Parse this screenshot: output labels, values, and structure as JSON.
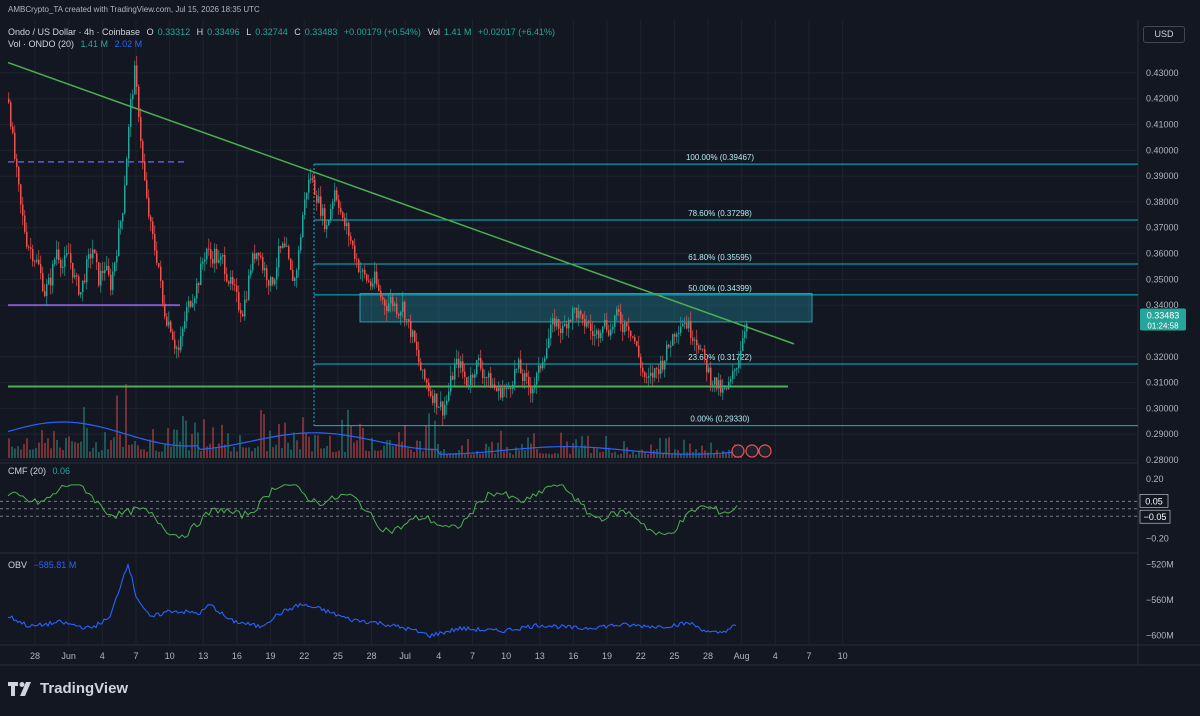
{
  "header": {
    "credit": "AMBCrypto_TA created with TradingView.com, Jul 15, 2026 18:35 UTC",
    "symbol": "Ondo / US Dollar · 4h · Coinbase",
    "o_label": "O",
    "o_value": "0.33312",
    "h_label": "H",
    "h_value": "0.33496",
    "l_label": "L",
    "l_value": "0.32744",
    "c_label": "C",
    "c_value": "0.33483",
    "change": "+0.00179 (+0.54%)",
    "vol_label": "Vol",
    "vol_value": "1.41 M",
    "vol_change": "+0.02017 (+6.41%)",
    "vol_ma_label": "Vol · ONDO (20)",
    "vol_ma_v1": "1.41 M",
    "vol_ma_v2": "2.02 M",
    "cmf_label": "CMF (20)",
    "cmf_value": "0.06",
    "obv_label": "OBV",
    "obv_value": "−585.81 M"
  },
  "currency_button": "USD",
  "price_badge": {
    "price": "0.33483",
    "countdown": "01:24:58"
  },
  "cmf_badges": [
    "0.05",
    "−0.05"
  ],
  "colors": {
    "background": "#131722",
    "up": "#26a69a",
    "down": "#ef5350",
    "trendline": "#4caf50",
    "fib": "#00bcd4",
    "zone": "#26a0b0",
    "cmf": "#4caf50",
    "obv": "#2962ff",
    "vol_ma": "#2962ff",
    "dashed": "#5b5bd6"
  },
  "footer": {
    "brand": "TradingView"
  },
  "chart_data": [
    {
      "type": "candlestick",
      "title": "Ondo / US Dollar · 4h · Coinbase",
      "ylim": [
        0.28,
        0.435
      ],
      "y_ticks": [
        "0.43000",
        "0.42000",
        "0.41000",
        "0.40000",
        "0.39000",
        "0.38000",
        "0.37000",
        "0.36000",
        "0.35000",
        "0.34000",
        "0.32000",
        "0.31000",
        "0.30000",
        "0.29000",
        "0.28000"
      ],
      "x_ticks": [
        "28",
        "Jun",
        "4",
        "7",
        "10",
        "13",
        "16",
        "19",
        "22",
        "25",
        "28",
        "Jul",
        "4",
        "7",
        "10",
        "13",
        "16",
        "19",
        "22",
        "25",
        "28",
        "Aug",
        "4",
        "7",
        "10"
      ],
      "close_path": [
        [
          0,
          0.42
        ],
        [
          5,
          0.4
        ],
        [
          12,
          0.378
        ],
        [
          18,
          0.365
        ],
        [
          24,
          0.36
        ],
        [
          30,
          0.355
        ],
        [
          36,
          0.345
        ],
        [
          42,
          0.35
        ],
        [
          48,
          0.362
        ],
        [
          54,
          0.355
        ],
        [
          60,
          0.36
        ],
        [
          66,
          0.35
        ],
        [
          72,
          0.345
        ],
        [
          78,
          0.355
        ],
        [
          84,
          0.362
        ],
        [
          90,
          0.35
        ],
        [
          96,
          0.355
        ],
        [
          102,
          0.348
        ],
        [
          108,
          0.362
        ],
        [
          114,
          0.378
        ],
        [
          118,
          0.398
        ],
        [
          122,
          0.418
        ],
        [
          126,
          0.43
        ],
        [
          130,
          0.415
        ],
        [
          134,
          0.395
        ],
        [
          138,
          0.38
        ],
        [
          142,
          0.37
        ],
        [
          146,
          0.362
        ],
        [
          150,
          0.355
        ],
        [
          154,
          0.34
        ],
        [
          158,
          0.335
        ],
        [
          162,
          0.332
        ],
        [
          166,
          0.325
        ],
        [
          170,
          0.322
        ],
        [
          174,
          0.33
        ],
        [
          178,
          0.338
        ],
        [
          182,
          0.342
        ],
        [
          186,
          0.345
        ],
        [
          190,
          0.35
        ],
        [
          194,
          0.357
        ],
        [
          198,
          0.362
        ],
        [
          202,
          0.358
        ],
        [
          206,
          0.36
        ],
        [
          210,
          0.356
        ],
        [
          214,
          0.358
        ],
        [
          218,
          0.352
        ],
        [
          222,
          0.348
        ],
        [
          226,
          0.345
        ],
        [
          230,
          0.34
        ],
        [
          234,
          0.338
        ],
        [
          238,
          0.345
        ],
        [
          242,
          0.355
        ],
        [
          246,
          0.36
        ],
        [
          250,
          0.362
        ],
        [
          254,
          0.355
        ],
        [
          258,
          0.352
        ],
        [
          262,
          0.348
        ],
        [
          266,
          0.352
        ],
        [
          270,
          0.36
        ],
        [
          274,
          0.362
        ],
        [
          278,
          0.36
        ],
        [
          282,
          0.352
        ],
        [
          286,
          0.35
        ],
        [
          290,
          0.36
        ],
        [
          294,
          0.375
        ],
        [
          298,
          0.385
        ],
        [
          302,
          0.39
        ],
        [
          306,
          0.385
        ],
        [
          310,
          0.38
        ],
        [
          314,
          0.375
        ],
        [
          318,
          0.37
        ],
        [
          322,
          0.378
        ],
        [
          326,
          0.385
        ],
        [
          330,
          0.38
        ],
        [
          334,
          0.372
        ],
        [
          338,
          0.37
        ],
        [
          342,
          0.365
        ],
        [
          346,
          0.36
        ],
        [
          350,
          0.355
        ],
        [
          354,
          0.352
        ],
        [
          358,
          0.35
        ],
        [
          362,
          0.348
        ],
        [
          366,
          0.35
        ],
        [
          370,
          0.345
        ],
        [
          374,
          0.342
        ],
        [
          378,
          0.34
        ],
        [
          382,
          0.342
        ],
        [
          386,
          0.34
        ],
        [
          390,
          0.338
        ],
        [
          394,
          0.34
        ],
        [
          398,
          0.334
        ],
        [
          402,
          0.33
        ],
        [
          406,
          0.325
        ],
        [
          410,
          0.318
        ],
        [
          414,
          0.312
        ],
        [
          418,
          0.31
        ],
        [
          422,
          0.306
        ],
        [
          426,
          0.304
        ],
        [
          430,
          0.302
        ],
        [
          434,
          0.3
        ],
        [
          438,
          0.303
        ],
        [
          442,
          0.31
        ],
        [
          446,
          0.316
        ],
        [
          450,
          0.318
        ],
        [
          454,
          0.314
        ],
        [
          458,
          0.31
        ],
        [
          462,
          0.312
        ],
        [
          466,
          0.316
        ],
        [
          470,
          0.318
        ],
        [
          474,
          0.314
        ],
        [
          478,
          0.312
        ],
        [
          482,
          0.31
        ],
        [
          486,
          0.308
        ],
        [
          490,
          0.306
        ],
        [
          494,
          0.308
        ],
        [
          498,
          0.306
        ],
        [
          502,
          0.31
        ],
        [
          506,
          0.314
        ],
        [
          510,
          0.316
        ],
        [
          514,
          0.312
        ],
        [
          518,
          0.31
        ],
        [
          522,
          0.308
        ],
        [
          526,
          0.31
        ],
        [
          530,
          0.314
        ],
        [
          534,
          0.32
        ],
        [
          538,
          0.324
        ],
        [
          542,
          0.33
        ],
        [
          546,
          0.334
        ],
        [
          550,
          0.332
        ],
        [
          554,
          0.33
        ],
        [
          558,
          0.334
        ],
        [
          562,
          0.336
        ],
        [
          566,
          0.338
        ],
        [
          570,
          0.336
        ],
        [
          574,
          0.332
        ],
        [
          578,
          0.334
        ],
        [
          582,
          0.33
        ],
        [
          586,
          0.328
        ],
        [
          590,
          0.33
        ],
        [
          594,
          0.334
        ],
        [
          598,
          0.332
        ],
        [
          602,
          0.33
        ],
        [
          606,
          0.335
        ],
        [
          610,
          0.336
        ],
        [
          614,
          0.332
        ],
        [
          618,
          0.334
        ],
        [
          622,
          0.33
        ],
        [
          626,
          0.326
        ],
        [
          630,
          0.32
        ],
        [
          634,
          0.314
        ],
        [
          638,
          0.31
        ],
        [
          642,
          0.312
        ],
        [
          646,
          0.314
        ],
        [
          650,
          0.316
        ],
        [
          654,
          0.318
        ],
        [
          658,
          0.322
        ],
        [
          662,
          0.326
        ],
        [
          666,
          0.33
        ],
        [
          670,
          0.332
        ],
        [
          674,
          0.334
        ],
        [
          678,
          0.333
        ],
        [
          682,
          0.33
        ],
        [
          686,
          0.328
        ],
        [
          690,
          0.325
        ],
        [
          694,
          0.32
        ],
        [
          698,
          0.316
        ],
        [
          702,
          0.312
        ],
        [
          706,
          0.31
        ],
        [
          710,
          0.308
        ],
        [
          714,
          0.306
        ],
        [
          718,
          0.307
        ],
        [
          722,
          0.31
        ],
        [
          726,
          0.315
        ],
        [
          730,
          0.32
        ],
        [
          734,
          0.328
        ],
        [
          738,
          0.335
        ]
      ],
      "fibonacci": [
        {
          "label": "100.00% (0.39467)",
          "value": 0.39467
        },
        {
          "label": "78.60% (0.37298)",
          "value": 0.37298
        },
        {
          "label": "61.80% (0.35595)",
          "value": 0.35595
        },
        {
          "label": "50.00% (0.34399)",
          "value": 0.34399
        },
        {
          "label": "23.60% (0.31722)",
          "value": 0.31722
        },
        {
          "label": "0.00% (0.29330)",
          "value": 0.2933
        }
      ],
      "zone": {
        "top": 0.3445,
        "bottom": 0.3335
      },
      "trendline": [
        [
          0,
          0.434
        ],
        [
          786,
          0.325
        ]
      ],
      "support": 0.3085,
      "resistance_old": 0.34,
      "dashed_level": 0.3955
    },
    {
      "type": "line",
      "title": "CMF (20)",
      "ylim": [
        -0.25,
        0.22
      ],
      "y_ticks": [
        "0.20",
        "−0.20"
      ],
      "levels": [
        0.05,
        -0.05,
        0
      ]
    },
    {
      "type": "line",
      "title": "OBV",
      "y_ticks": [
        "−520M",
        "−560M",
        "−600M"
      ],
      "ylim": [
        -605,
        -515
      ]
    }
  ]
}
